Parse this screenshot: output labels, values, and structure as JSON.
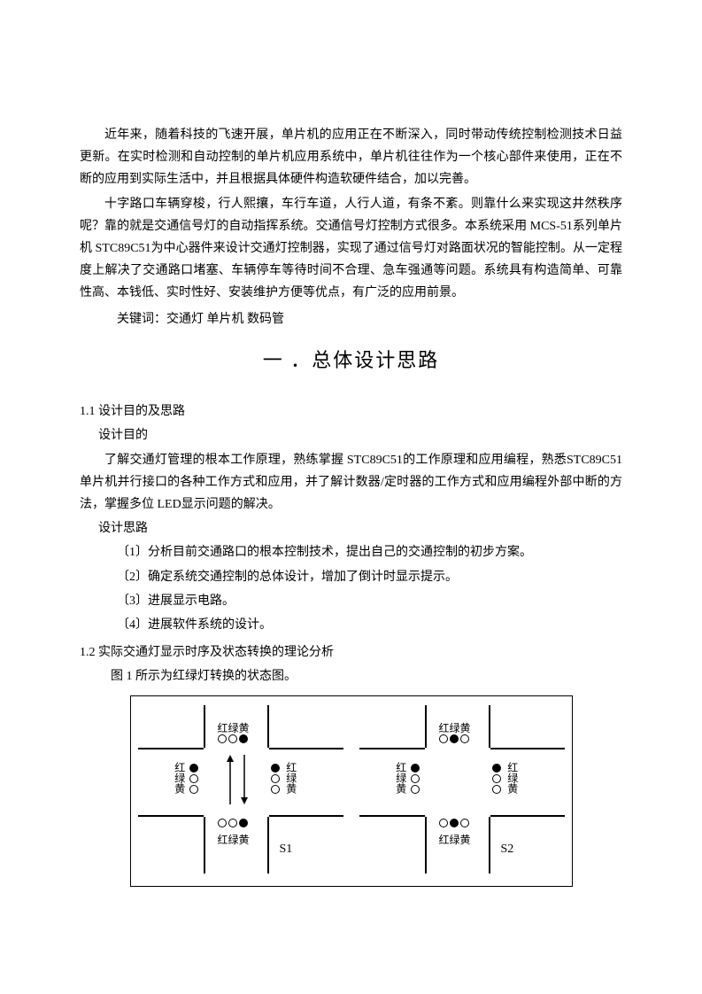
{
  "intro": {
    "p1": "近年来，随着科技的飞速开展，单片机的应用正在不断深入，同时带动传统控制检测技术日益更新。在实时检测和自动控制的单片机应用系统中，单片机往往作为一个核心部件来使用，正在不断的应用到实际生活中，并且根据具体硬件构造软硬件结合，加以完善。",
    "p2": "十字路口车辆穿梭，行人熙攘，车行车道，人行人道，有条不紊。则靠什么来实现这井然秩序呢？靠的就是交通信号灯的自动指挥系统。交通信号灯控制方式很多。本系统采用 MCS-51系列单片机 STC89C51为中心器件来设计交通灯控制器，实现了通过信号灯对路面状况的智能控制。从一定程度上解决了交通路口堵塞、车辆停车等待时间不合理、急车强通等问题。系统具有构造简单、可靠性高、本钱低、实时性好、安装维护方便等优点，有广泛的应用前景。",
    "keywords": "关键词：交通灯 单片机 数码管"
  },
  "mainTitle": "一 ．总体设计思路",
  "s11": {
    "heading": "1.1  设计目的及思路",
    "purposeLabel": "设计目的",
    "purposeText": "了解交通灯管理的根本工作原理，熟练掌握 STC89C51的工作原理和应用编程，熟悉STC89C51单片机并行接口的各种工作方式和应用，并了解计数器/定时器的工作方式和应用编程外部中断的方法，掌握多位 LED显示问题的解决。",
    "ideaLabel": "设计思路",
    "item1": "〔1〕分析目前交通路口的根本控制技术，提出自己的交通控制的初步方案。",
    "item2": "〔2〕确定系统交通控制的总体设计，增加了倒计时显示提示。",
    "item3": "〔3〕进展显示电路。",
    "item4": "〔4〕进展软件系统的设计。"
  },
  "s12": {
    "heading": "1.2  实际交通灯显示时序及状态转换的理论分析",
    "caption": "图 1 所示为红绿灯转换的状态图。"
  },
  "diagram": {
    "labelRGY": "红绿黄",
    "labelRGYv": "红绿黄",
    "state1": "S1",
    "state2": "S2",
    "colors": {
      "line": "#000000",
      "off": "#ffffff",
      "on": "#000000",
      "bg": "#ffffff"
    },
    "intersections": [
      {
        "state": "S1",
        "top": {
          "on": [
            false,
            false,
            true
          ],
          "label_pos": "above"
        },
        "bottom": {
          "on": [
            false,
            false,
            true
          ],
          "label_pos": "below"
        },
        "left": {
          "on": [
            true,
            false,
            false
          ],
          "label_pos": "left"
        },
        "right": {
          "on": [
            true,
            false,
            false
          ],
          "label_pos": "right"
        },
        "arrows": true
      },
      {
        "state": "S2",
        "top": {
          "on": [
            false,
            true,
            false
          ],
          "label_pos": "above"
        },
        "bottom": {
          "on": [
            false,
            true,
            false
          ],
          "label_pos": "below"
        },
        "left": {
          "on": [
            true,
            false,
            false
          ],
          "label_pos": "left"
        },
        "right": {
          "on": [
            true,
            false,
            false
          ],
          "label_pos": "right"
        },
        "arrows": false
      }
    ]
  }
}
